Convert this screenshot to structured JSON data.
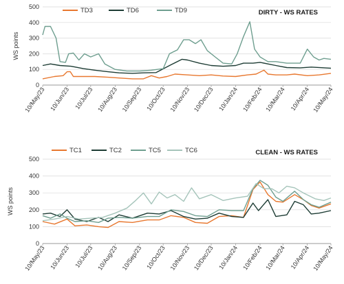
{
  "chart_data": [
    {
      "type": "line",
      "title": "DIRTY - WS RATES",
      "ylabel": "WS points",
      "xlabel": "",
      "ylim": [
        0,
        500
      ],
      "yticks": [
        0,
        100,
        200,
        300,
        400,
        500
      ],
      "xlim": [
        "2023-05-10",
        "2024-05-10"
      ],
      "xticks": [
        "10/May/23",
        "10/Jun/23",
        "10/Jul/23",
        "10/Aug/23",
        "10/Sep/23",
        "10/Oct/23",
        "10/Nov/23",
        "10/Dec/23",
        "10/Jan/24",
        "10/Feb/24",
        "10/Mar/24",
        "10/Apr/24",
        "10/May/24"
      ],
      "legend_position": "top",
      "grid": "horizontal",
      "series": [
        {
          "name": "TD3",
          "color": "#e8772e",
          "points": [
            [
              "2023-05-10",
              40
            ],
            [
              "2023-05-25",
              55
            ],
            [
              "2023-06-05",
              60
            ],
            [
              "2023-06-10",
              85
            ],
            [
              "2023-06-14",
              86
            ],
            [
              "2023-06-18",
              55
            ],
            [
              "2023-07-01",
              55
            ],
            [
              "2023-07-15",
              55
            ],
            [
              "2023-08-01",
              50
            ],
            [
              "2023-08-15",
              45
            ],
            [
              "2023-09-01",
              40
            ],
            [
              "2023-09-15",
              40
            ],
            [
              "2023-09-25",
              60
            ],
            [
              "2023-10-05",
              45
            ],
            [
              "2023-10-15",
              55
            ],
            [
              "2023-10-25",
              70
            ],
            [
              "2023-11-10",
              65
            ],
            [
              "2023-11-25",
              60
            ],
            [
              "2023-12-10",
              65
            ],
            [
              "2023-12-25",
              58
            ],
            [
              "2024-01-10",
              55
            ],
            [
              "2024-01-25",
              65
            ],
            [
              "2024-02-05",
              70
            ],
            [
              "2024-02-15",
              95
            ],
            [
              "2024-02-20",
              70
            ],
            [
              "2024-03-01",
              65
            ],
            [
              "2024-03-15",
              65
            ],
            [
              "2024-03-25",
              70
            ],
            [
              "2024-04-10",
              60
            ],
            [
              "2024-04-25",
              65
            ],
            [
              "2024-05-10",
              75
            ]
          ]
        },
        {
          "name": "TD6",
          "color": "#1c3b33",
          "points": [
            [
              "2023-05-10",
              125
            ],
            [
              "2023-05-20",
              135
            ],
            [
              "2023-06-01",
              125
            ],
            [
              "2023-06-15",
              120
            ],
            [
              "2023-07-01",
              105
            ],
            [
              "2023-07-15",
              95
            ],
            [
              "2023-08-01",
              85
            ],
            [
              "2023-08-15",
              78
            ],
            [
              "2023-09-01",
              75
            ],
            [
              "2023-09-15",
              78
            ],
            [
              "2023-10-01",
              80
            ],
            [
              "2023-10-20",
              130
            ],
            [
              "2023-11-03",
              165
            ],
            [
              "2023-11-10",
              160
            ],
            [
              "2023-11-25",
              140
            ],
            [
              "2023-12-10",
              125
            ],
            [
              "2023-12-25",
              120
            ],
            [
              "2024-01-10",
              125
            ],
            [
              "2024-01-20",
              140
            ],
            [
              "2024-02-01",
              140
            ],
            [
              "2024-02-10",
              145
            ],
            [
              "2024-02-20",
              135
            ],
            [
              "2024-03-01",
              125
            ],
            [
              "2024-03-15",
              112
            ],
            [
              "2024-04-01",
              110
            ],
            [
              "2024-04-15",
              115
            ],
            [
              "2024-05-10",
              108
            ]
          ]
        },
        {
          "name": "TD9",
          "color": "#6e9e8f",
          "points": [
            [
              "2023-05-10",
              320
            ],
            [
              "2023-05-13",
              375
            ],
            [
              "2023-05-20",
              375
            ],
            [
              "2023-05-27",
              300
            ],
            [
              "2023-06-01",
              150
            ],
            [
              "2023-06-08",
              145
            ],
            [
              "2023-06-12",
              200
            ],
            [
              "2023-06-18",
              205
            ],
            [
              "2023-06-25",
              160
            ],
            [
              "2023-07-02",
              200
            ],
            [
              "2023-07-10",
              180
            ],
            [
              "2023-07-20",
              200
            ],
            [
              "2023-07-28",
              135
            ],
            [
              "2023-08-10",
              100
            ],
            [
              "2023-08-25",
              90
            ],
            [
              "2023-09-10",
              90
            ],
            [
              "2023-09-25",
              95
            ],
            [
              "2023-10-10",
              105
            ],
            [
              "2023-10-18",
              200
            ],
            [
              "2023-10-28",
              225
            ],
            [
              "2023-11-05",
              290
            ],
            [
              "2023-11-12",
              290
            ],
            [
              "2023-11-20",
              265
            ],
            [
              "2023-11-27",
              290
            ],
            [
              "2023-12-05",
              220
            ],
            [
              "2023-12-15",
              180
            ],
            [
              "2023-12-25",
              140
            ],
            [
              "2024-01-05",
              135
            ],
            [
              "2024-01-12",
              200
            ],
            [
              "2024-01-20",
              310
            ],
            [
              "2024-01-28",
              405
            ],
            [
              "2024-02-03",
              230
            ],
            [
              "2024-02-10",
              180
            ],
            [
              "2024-02-20",
              150
            ],
            [
              "2024-03-01",
              150
            ],
            [
              "2024-03-15",
              140
            ],
            [
              "2024-04-01",
              140
            ],
            [
              "2024-04-10",
              230
            ],
            [
              "2024-04-18",
              180
            ],
            [
              "2024-04-25",
              160
            ],
            [
              "2024-05-01",
              170
            ],
            [
              "2024-05-10",
              165
            ]
          ]
        }
      ]
    },
    {
      "type": "line",
      "title": "CLEAN - WS RATES",
      "ylabel": "WS points",
      "xlabel": "",
      "ylim": [
        0,
        500
      ],
      "yticks": [
        0,
        100,
        200,
        300,
        400,
        500
      ],
      "xlim": [
        "2023-05-10",
        "2024-05-10"
      ],
      "xticks": [
        "10/May/23",
        "10/Jun/23",
        "10/Jul/23",
        "10/Aug/23",
        "10/Sep/23",
        "10/Oct/23",
        "10/Nov/23",
        "10/Dec/23",
        "10/Jan/24",
        "10/Feb/24",
        "10/Mar/24",
        "10/Apr/24",
        "10/May/24"
      ],
      "legend_position": "top",
      "grid": "horizontal",
      "series": [
        {
          "name": "TC1",
          "color": "#e8772e",
          "points": [
            [
              "2023-05-10",
              130
            ],
            [
              "2023-05-25",
              115
            ],
            [
              "2023-06-10",
              145
            ],
            [
              "2023-06-20",
              105
            ],
            [
              "2023-07-05",
              110
            ],
            [
              "2023-07-20",
              100
            ],
            [
              "2023-08-01",
              95
            ],
            [
              "2023-08-15",
              130
            ],
            [
              "2023-09-01",
              125
            ],
            [
              "2023-09-20",
              140
            ],
            [
              "2023-10-05",
              140
            ],
            [
              "2023-10-20",
              165
            ],
            [
              "2023-11-05",
              155
            ],
            [
              "2023-11-20",
              125
            ],
            [
              "2023-12-05",
              120
            ],
            [
              "2023-12-20",
              160
            ],
            [
              "2024-01-05",
              165
            ],
            [
              "2024-01-20",
              155
            ],
            [
              "2024-02-01",
              320
            ],
            [
              "2024-02-10",
              365
            ],
            [
              "2024-02-20",
              290
            ],
            [
              "2024-03-01",
              250
            ],
            [
              "2024-03-10",
              245
            ],
            [
              "2024-03-25",
              290
            ],
            [
              "2024-04-05",
              260
            ],
            [
              "2024-04-15",
              225
            ],
            [
              "2024-04-25",
              210
            ],
            [
              "2024-05-10",
              235
            ]
          ]
        },
        {
          "name": "TC2",
          "color": "#1c3b33",
          "points": [
            [
              "2023-05-10",
              175
            ],
            [
              "2023-05-20",
              180
            ],
            [
              "2023-06-01",
              160
            ],
            [
              "2023-06-10",
              200
            ],
            [
              "2023-06-20",
              145
            ],
            [
              "2023-07-05",
              130
            ],
            [
              "2023-07-20",
              155
            ],
            [
              "2023-08-01",
              130
            ],
            [
              "2023-08-15",
              170
            ],
            [
              "2023-09-01",
              150
            ],
            [
              "2023-09-20",
              180
            ],
            [
              "2023-10-05",
              175
            ],
            [
              "2023-10-20",
              195
            ],
            [
              "2023-11-05",
              160
            ],
            [
              "2023-11-20",
              145
            ],
            [
              "2023-12-05",
              150
            ],
            [
              "2023-12-20",
              180
            ],
            [
              "2024-01-05",
              160
            ],
            [
              "2024-01-20",
              155
            ],
            [
              "2024-02-01",
              240
            ],
            [
              "2024-02-08",
              195
            ],
            [
              "2024-02-20",
              260
            ],
            [
              "2024-03-01",
              160
            ],
            [
              "2024-03-15",
              170
            ],
            [
              "2024-03-25",
              250
            ],
            [
              "2024-04-05",
              230
            ],
            [
              "2024-04-15",
              175
            ],
            [
              "2024-04-25",
              180
            ],
            [
              "2024-05-10",
              195
            ]
          ]
        },
        {
          "name": "TC5",
          "color": "#6e9e8f",
          "points": [
            [
              "2023-05-10",
              165
            ],
            [
              "2023-05-20",
              150
            ],
            [
              "2023-06-01",
              175
            ],
            [
              "2023-06-10",
              150
            ],
            [
              "2023-06-20",
              130
            ],
            [
              "2023-07-05",
              135
            ],
            [
              "2023-07-20",
              125
            ],
            [
              "2023-08-01",
              150
            ],
            [
              "2023-08-15",
              155
            ],
            [
              "2023-09-01",
              150
            ],
            [
              "2023-09-20",
              160
            ],
            [
              "2023-10-05",
              160
            ],
            [
              "2023-10-20",
              200
            ],
            [
              "2023-11-05",
              190
            ],
            [
              "2023-11-20",
              165
            ],
            [
              "2023-12-05",
              160
            ],
            [
              "2023-12-20",
              200
            ],
            [
              "2024-01-05",
              195
            ],
            [
              "2024-01-20",
              195
            ],
            [
              "2024-02-01",
              325
            ],
            [
              "2024-02-10",
              375
            ],
            [
              "2024-02-20",
              345
            ],
            [
              "2024-03-01",
              275
            ],
            [
              "2024-03-10",
              250
            ],
            [
              "2024-03-25",
              310
            ],
            [
              "2024-04-05",
              260
            ],
            [
              "2024-04-15",
              230
            ],
            [
              "2024-04-25",
              215
            ],
            [
              "2024-05-10",
              245
            ]
          ]
        },
        {
          "name": "TC6",
          "color": "#a5c4ba",
          "points": [
            [
              "2023-05-10",
              135
            ],
            [
              "2023-05-25",
              145
            ],
            [
              "2023-06-10",
              160
            ],
            [
              "2023-06-25",
              145
            ],
            [
              "2023-07-10",
              150
            ],
            [
              "2023-07-25",
              155
            ],
            [
              "2023-08-10",
              180
            ],
            [
              "2023-08-25",
              210
            ],
            [
              "2023-09-05",
              255
            ],
            [
              "2023-09-15",
              300
            ],
            [
              "2023-09-25",
              235
            ],
            [
              "2023-10-05",
              305
            ],
            [
              "2023-10-15",
              270
            ],
            [
              "2023-10-25",
              290
            ],
            [
              "2023-11-05",
              250
            ],
            [
              "2023-11-15",
              330
            ],
            [
              "2023-11-25",
              265
            ],
            [
              "2023-12-10",
              290
            ],
            [
              "2023-12-25",
              255
            ],
            [
              "2024-01-10",
              270
            ],
            [
              "2024-01-25",
              280
            ],
            [
              "2024-02-05",
              355
            ],
            [
              "2024-02-15",
              325
            ],
            [
              "2024-02-25",
              325
            ],
            [
              "2024-03-05",
              300
            ],
            [
              "2024-03-15",
              340
            ],
            [
              "2024-03-25",
              330
            ],
            [
              "2024-04-05",
              300
            ],
            [
              "2024-04-20",
              265
            ],
            [
              "2024-05-01",
              255
            ],
            [
              "2024-05-10",
              270
            ]
          ]
        }
      ]
    }
  ]
}
